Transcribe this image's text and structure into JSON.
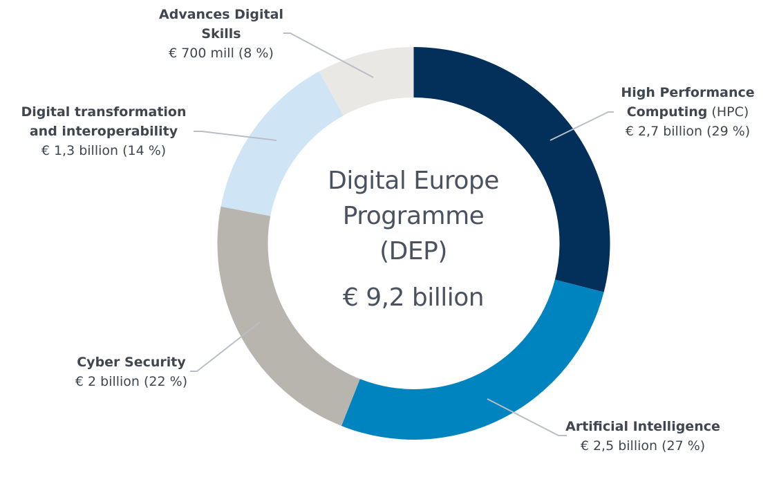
{
  "chart_data": {
    "type": "pie",
    "variant": "donut",
    "title": "Digital Europe Programme (DEP)",
    "center_title_lines": [
      "Digital Europe",
      "Programme",
      "(DEP)"
    ],
    "center_total": "€ 9,2 billion",
    "total_value_billion_eur": 9.2,
    "categories": [
      "High Performance Computing (HPC)",
      "Artificial Intelligence",
      "Cyber Security",
      "Digital transformation and interoperability",
      "Advances Digital Skills"
    ],
    "values_billion_eur": [
      2.7,
      2.5,
      2.0,
      1.3,
      0.7
    ],
    "percentages": [
      29,
      27,
      22,
      14,
      8
    ],
    "colors": [
      "#02305a",
      "#0084c0",
      "#b8b4ae",
      "#cfe4f5",
      "#e9e8e5"
    ],
    "legend_position": "callouts"
  },
  "center": {
    "line1": "Digital Europe",
    "line2": "Programme",
    "line3": "(DEP)",
    "total": "€ 9,2 billion"
  },
  "labels": {
    "hpc": {
      "name_bold": "High Performance",
      "name_bold2": "Computing",
      "name_light": " (HPC)",
      "value": "€ 2,7 billion (29 %)"
    },
    "ai": {
      "name": "Artificial Intelligence",
      "value": "€ 2,5 billion (27 %)"
    },
    "cyber": {
      "name": "Cyber Security",
      "value": "€ 2 billion (22 %)"
    },
    "dti": {
      "name1": "Digital transformation",
      "name2": "and interoperability",
      "value": "€ 1,3 billion (14 %)"
    },
    "skills": {
      "name1": "Advances Digital",
      "name2": "Skills",
      "value": "€ 700 mill (8 %)"
    }
  },
  "style": {
    "leader_color": "#b9bec6"
  }
}
